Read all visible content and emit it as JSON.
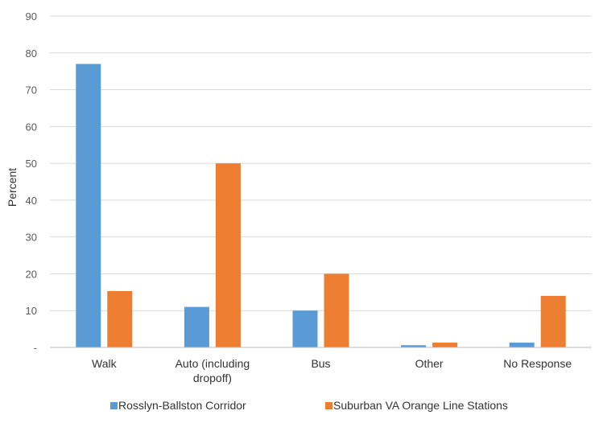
{
  "chart_data": {
    "type": "bar",
    "title": "",
    "xlabel": "",
    "ylabel": "Percent",
    "ylim": [
      0,
      90
    ],
    "yticks": [
      0,
      10,
      20,
      30,
      40,
      50,
      60,
      70,
      80,
      90
    ],
    "ytick_labels": [
      "-",
      "10",
      "20",
      "30",
      "40",
      "50",
      "60",
      "70",
      "80",
      "90"
    ],
    "grid": true,
    "legend_position": "bottom",
    "categories": [
      "Walk",
      "Auto (including dropoff)",
      "Bus",
      "Other",
      "No Response"
    ],
    "category_lines": [
      [
        "Walk"
      ],
      [
        "Auto (including",
        "dropoff)"
      ],
      [
        "Bus"
      ],
      [
        "Other"
      ],
      [
        "No Response"
      ]
    ],
    "series": [
      {
        "name": "Rosslyn-Ballston Corridor",
        "color": "#5B9BD5",
        "values": [
          77,
          11,
          10,
          0.6,
          1.3
        ]
      },
      {
        "name": "Suburban VA Orange Line Stations",
        "color": "#ED7D31",
        "values": [
          15.3,
          50,
          20,
          1.3,
          14
        ]
      }
    ]
  }
}
